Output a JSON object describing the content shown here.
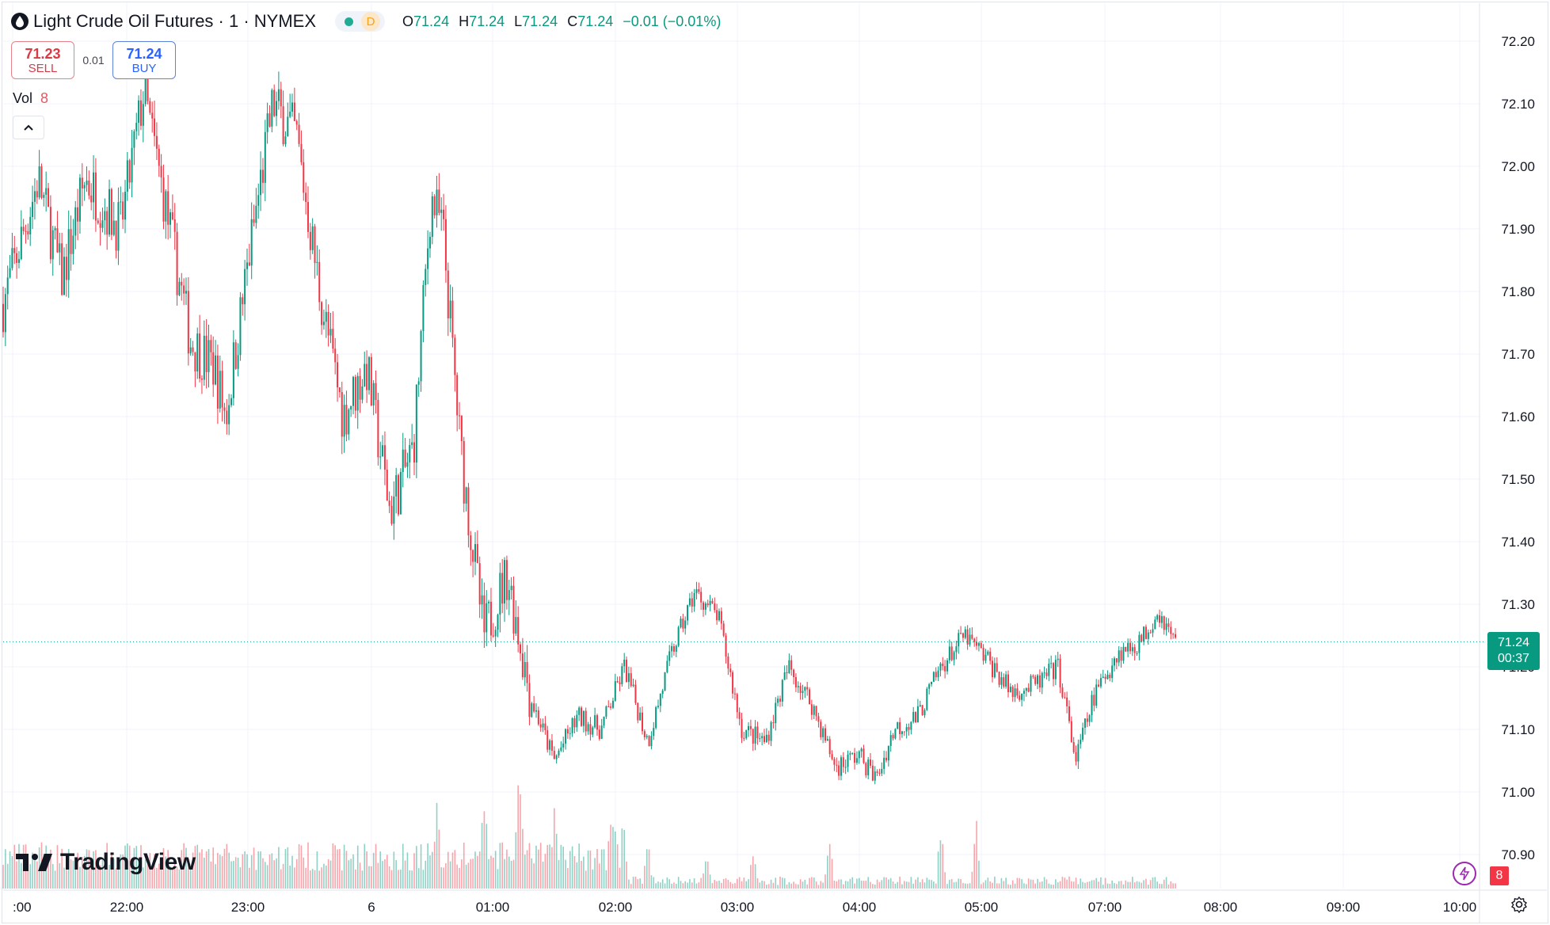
{
  "header": {
    "symbol_title": "Light Crude Oil Futures · 1 · NYMEX",
    "status_badge": "D",
    "ohlc": {
      "open_label": "O",
      "open": "71.24",
      "high_label": "H",
      "high": "71.24",
      "low_label": "L",
      "low": "71.24",
      "close_label": "C",
      "close": "71.24",
      "change": "−0.01 (−0.01%)"
    }
  },
  "trade": {
    "sell_price": "71.23",
    "sell_label": "SELL",
    "spread": "0.01",
    "buy_price": "71.24",
    "buy_label": "BUY"
  },
  "volume_legend": {
    "label": "Vol",
    "value": "8"
  },
  "last_price_tag": {
    "price": "71.24",
    "countdown": "00:37"
  },
  "volume_badge": "8",
  "branding": {
    "logo_text": "TradingView"
  },
  "colors": {
    "up": "#089981",
    "down": "#f23645",
    "grid": "#f0f3fa",
    "accent": "#2962ff"
  },
  "icons": [
    "oil-drop-icon",
    "chevron-up-icon",
    "lightning-icon",
    "settings-icon",
    "tradingview-logo-icon"
  ],
  "chart_data": {
    "type": "candlestick",
    "interval": "1 minute",
    "last_price": 71.24,
    "ylim": [
      70.86,
      72.24
    ],
    "y_ticks": [
      "72.20",
      "72.10",
      "72.00",
      "71.90",
      "71.80",
      "71.70",
      "71.60",
      "71.50",
      "71.40",
      "71.30",
      "71.20",
      "71.10",
      "71.00",
      "70.90"
    ],
    "x_ticks": [
      ":00",
      "22:00",
      "23:00",
      "6",
      "01:00",
      "02:00",
      "03:00",
      "04:00",
      "05:00",
      "07:00",
      "08:00",
      "09:00",
      "10:00"
    ],
    "grid": true,
    "price_path": [
      {
        "t": 0.0,
        "p": 71.78
      },
      {
        "t": 0.03,
        "p": 71.98
      },
      {
        "t": 0.05,
        "p": 71.82
      },
      {
        "t": 0.07,
        "p": 71.98
      },
      {
        "t": 0.1,
        "p": 71.9
      },
      {
        "t": 0.12,
        "p": 72.12
      },
      {
        "t": 0.14,
        "p": 71.92
      },
      {
        "t": 0.16,
        "p": 71.72
      },
      {
        "t": 0.18,
        "p": 71.68
      },
      {
        "t": 0.19,
        "p": 71.6
      },
      {
        "t": 0.21,
        "p": 71.86
      },
      {
        "t": 0.23,
        "p": 72.1
      },
      {
        "t": 0.25,
        "p": 72.05
      },
      {
        "t": 0.27,
        "p": 71.8
      },
      {
        "t": 0.29,
        "p": 71.6
      },
      {
        "t": 0.31,
        "p": 71.68
      },
      {
        "t": 0.33,
        "p": 71.45
      },
      {
        "t": 0.35,
        "p": 71.55
      },
      {
        "t": 0.365,
        "p": 71.95
      },
      {
        "t": 0.375,
        "p": 71.9
      },
      {
        "t": 0.39,
        "p": 71.55
      },
      {
        "t": 0.41,
        "p": 71.25
      },
      {
        "t": 0.43,
        "p": 71.35
      },
      {
        "t": 0.45,
        "p": 71.15
      },
      {
        "t": 0.47,
        "p": 71.05
      },
      {
        "t": 0.49,
        "p": 71.12
      },
      {
        "t": 0.51,
        "p": 71.1
      },
      {
        "t": 0.53,
        "p": 71.2
      },
      {
        "t": 0.55,
        "p": 71.08
      },
      {
        "t": 0.57,
        "p": 71.22
      },
      {
        "t": 0.59,
        "p": 71.32
      },
      {
        "t": 0.61,
        "p": 71.28
      },
      {
        "t": 0.63,
        "p": 71.1
      },
      {
        "t": 0.65,
        "p": 71.08
      },
      {
        "t": 0.67,
        "p": 71.2
      },
      {
        "t": 0.69,
        "p": 71.14
      },
      {
        "t": 0.71,
        "p": 71.04
      },
      {
        "t": 0.73,
        "p": 71.06
      },
      {
        "t": 0.745,
        "p": 71.02
      },
      {
        "t": 0.76,
        "p": 71.1
      },
      {
        "t": 0.78,
        "p": 71.12
      },
      {
        "t": 0.8,
        "p": 71.2
      },
      {
        "t": 0.82,
        "p": 71.25
      },
      {
        "t": 0.84,
        "p": 71.21
      },
      {
        "t": 0.86,
        "p": 71.16
      },
      {
        "t": 0.88,
        "p": 71.17
      },
      {
        "t": 0.9,
        "p": 71.2
      },
      {
        "t": 0.915,
        "p": 71.05
      },
      {
        "t": 0.93,
        "p": 71.15
      },
      {
        "t": 0.95,
        "p": 71.22
      },
      {
        "t": 0.97,
        "p": 71.24
      },
      {
        "t": 0.985,
        "p": 71.29
      },
      {
        "t": 1.0,
        "p": 71.24
      }
    ],
    "volume_spikes": [
      {
        "t": 0.37,
        "v": 10
      },
      {
        "t": 0.41,
        "v": 9
      },
      {
        "t": 0.44,
        "v": 14
      },
      {
        "t": 0.47,
        "v": 9
      },
      {
        "t": 0.52,
        "v": 8
      },
      {
        "t": 0.53,
        "v": 6
      },
      {
        "t": 0.55,
        "v": 7
      },
      {
        "t": 0.6,
        "v": 6
      },
      {
        "t": 0.64,
        "v": 5
      },
      {
        "t": 0.705,
        "v": 6
      },
      {
        "t": 0.8,
        "v": 9
      },
      {
        "t": 0.83,
        "v": 12
      }
    ]
  }
}
